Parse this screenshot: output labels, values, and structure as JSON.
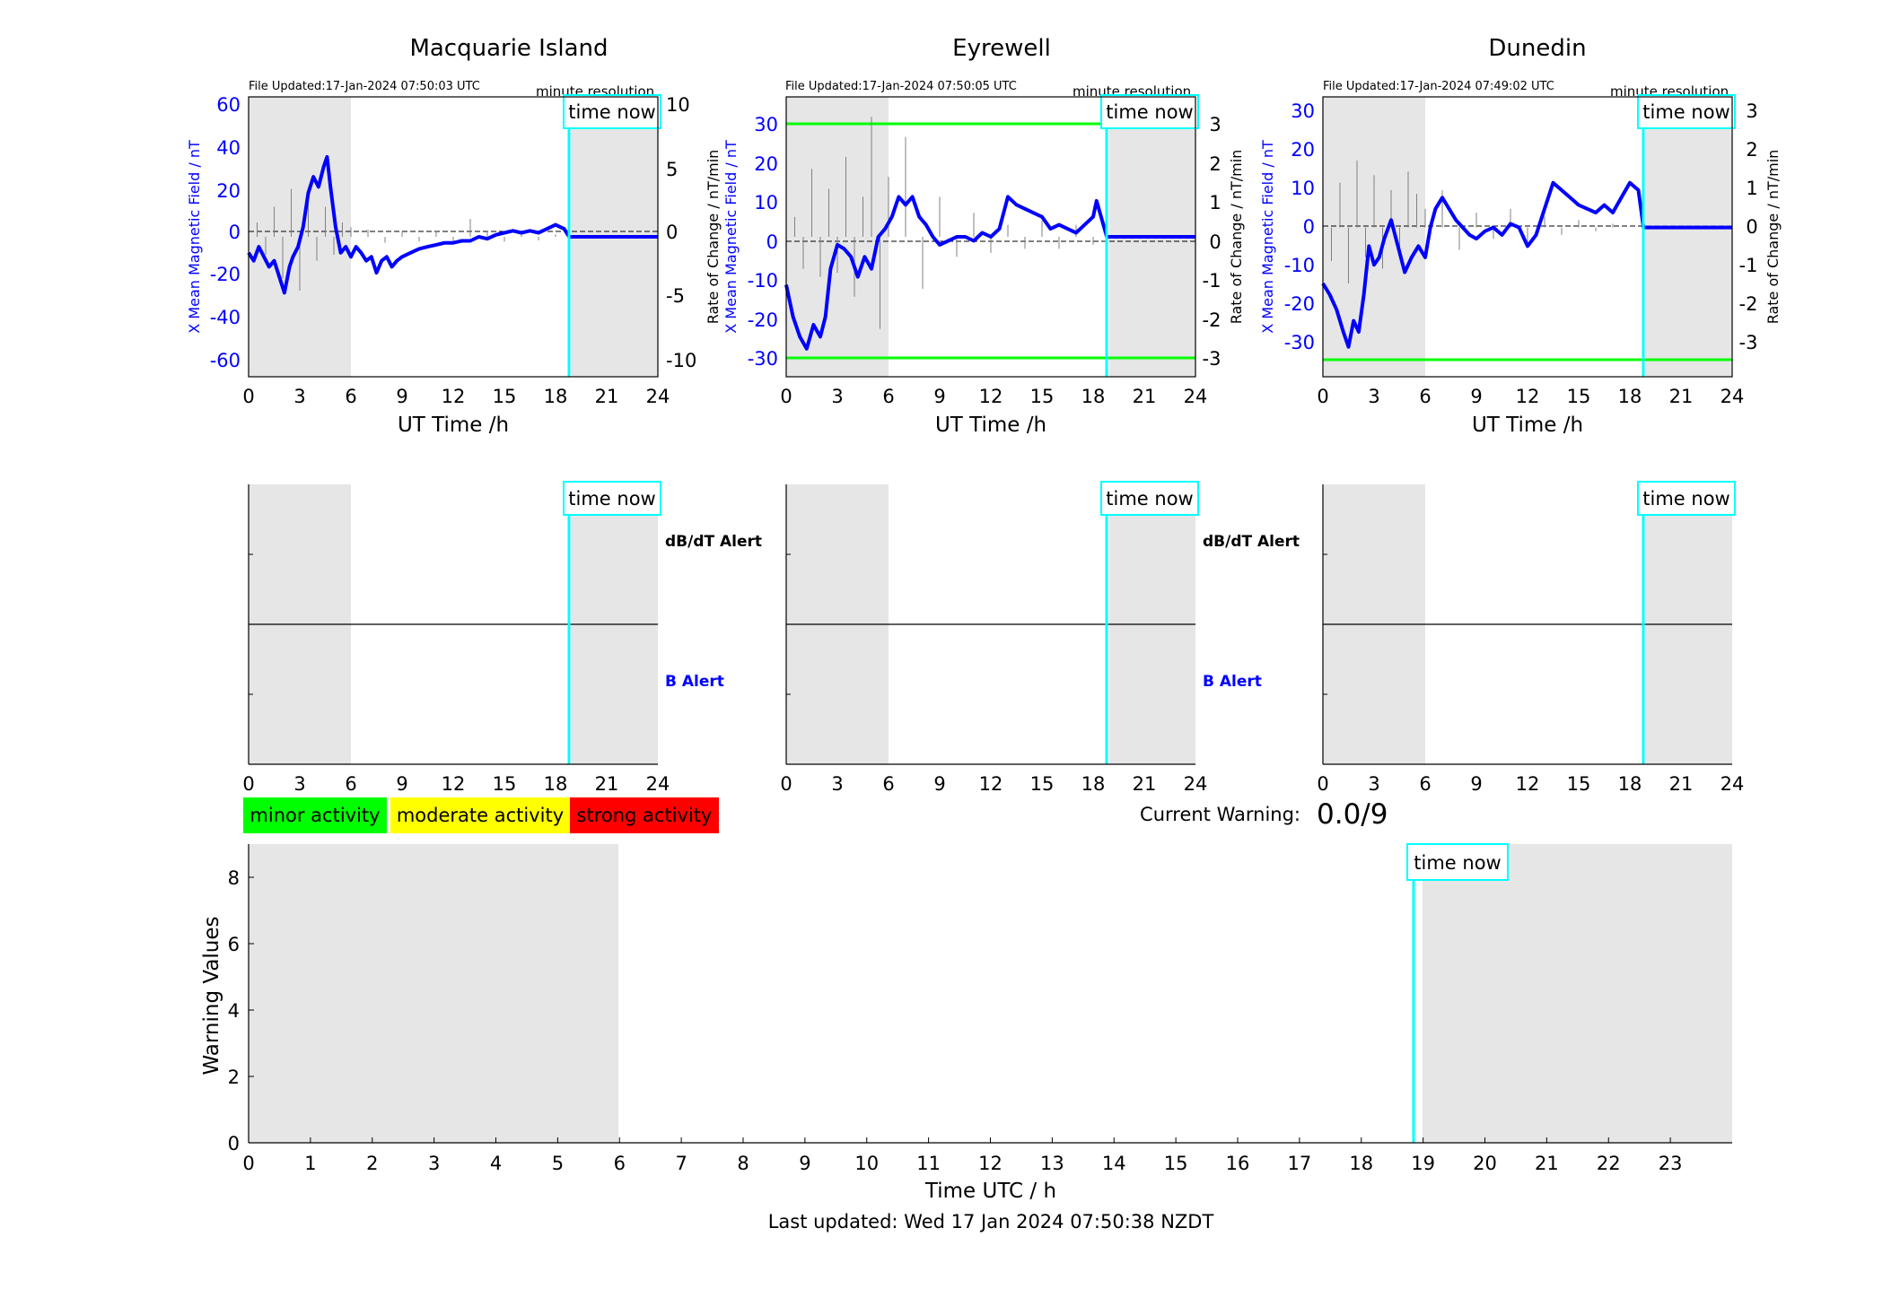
{
  "panels": [
    {
      "title": "Macquarie Island",
      "file_updated": "File Updated:17-Jan-2024 07:50:03 UTC",
      "resolution": "minute resolution",
      "left_label": "X Mean Magnetic Field / nT",
      "right_label": "",
      "left_ticks": [
        "60",
        "40",
        "20",
        "0",
        "-20",
        "-40",
        "-60"
      ],
      "right_ticks": [
        "10",
        "5",
        "0",
        "-5",
        "-10"
      ],
      "xlabel": "UT Time /h"
    },
    {
      "title": "Eyrewell",
      "file_updated": "File Updated:17-Jan-2024 07:50:05 UTC",
      "resolution": "minute resolution",
      "left_label": "X Mean Magnetic Field / nT",
      "left_label_2": "Rate of Change / nT/min",
      "right_label": "Rate of Change / nT/min",
      "left_ticks": [
        "30",
        "20",
        "10",
        "0",
        "-10",
        "-20",
        "-30"
      ],
      "right_ticks": [
        "3",
        "2",
        "1",
        "0",
        "-1",
        "-2",
        "-3"
      ],
      "xlabel": "UT Time /h"
    },
    {
      "title": "Dunedin",
      "file_updated": "File Updated:17-Jan-2024 07:49:02 UTC",
      "resolution": "minute resolution",
      "left_label": "X Mean Magnetic Field / nT",
      "right_label": "Rate of Change / nT/min",
      "left_ticks": [
        "30",
        "20",
        "10",
        "0",
        "-10",
        "-20",
        "-30"
      ],
      "right_ticks": [
        "3",
        "2",
        "1",
        "0",
        "-1",
        "-2",
        "-3"
      ],
      "xlabel": "UT Time /h"
    }
  ],
  "x_ticks_24": [
    "0",
    "3",
    "6",
    "9",
    "12",
    "15",
    "18",
    "21",
    "24"
  ],
  "time_now_label": "time now",
  "alerts": {
    "dbdt": "dB/dT Alert",
    "b": "B Alert"
  },
  "legend": {
    "minor": "minor activity",
    "moderate": "moderate activity",
    "strong": "strong activity",
    "colors": {
      "minor": "#00ff00",
      "moderate": "#ffff00",
      "strong": "#ff0000"
    }
  },
  "current_warning": {
    "label": "Current Warning:",
    "value": "0.0/9"
  },
  "warning_chart": {
    "ylabel": "Warning Values",
    "xlabel": "Time UTC / h",
    "y_ticks": [
      "0",
      "2",
      "4",
      "6",
      "8"
    ],
    "x_ticks": [
      "0",
      "1",
      "2",
      "3",
      "4",
      "5",
      "6",
      "7",
      "8",
      "9",
      "10",
      "11",
      "12",
      "13",
      "14",
      "15",
      "16",
      "17",
      "18",
      "19",
      "20",
      "21",
      "22",
      "23"
    ]
  },
  "last_updated": "Last updated: Wed 17 Jan 2024 07:50:38 NZDT",
  "colors": {
    "field": "#0000ff",
    "rate": "#808080",
    "time_now": "#00ffff",
    "threshold": "#00ff00",
    "night": "#e6e6e6"
  },
  "chart_data": [
    {
      "type": "line",
      "title": "Macquarie Island",
      "xlabel": "UT Time /h",
      "ylabel": "X Mean Magnetic Field / nT",
      "xlim": [
        0,
        24
      ],
      "ylim": [
        -70,
        70
      ],
      "y2lim": [
        -11.7,
        11.7
      ],
      "time_now": 18.8,
      "series": [
        {
          "name": "X Mean Magnetic Field / nT",
          "x": [
            0,
            0.3,
            0.6,
            0.9,
            1.2,
            1.5,
            1.8,
            2.1,
            2.4,
            2.6,
            2.9,
            3.2,
            3.5,
            3.8,
            4.1,
            4.4,
            4.6,
            4.8,
            5.1,
            5.4,
            5.7,
            6.0,
            6.3,
            6.6,
            6.9,
            7.2,
            7.5,
            7.8,
            8.1,
            8.4,
            8.7,
            9.0,
            9.5,
            10,
            10.5,
            11,
            11.5,
            12,
            12.5,
            13,
            13.5,
            14,
            14.5,
            15,
            15.5,
            16,
            16.5,
            17,
            17.5,
            18,
            18.5,
            18.8,
            19,
            20,
            21,
            22,
            23,
            24
          ],
          "y": [
            -8,
            -12,
            -5,
            -10,
            -15,
            -12,
            -20,
            -28,
            -15,
            -10,
            -5,
            5,
            22,
            30,
            25,
            35,
            40,
            25,
            5,
            -8,
            -5,
            -10,
            -5,
            -8,
            -12,
            -10,
            -18,
            -12,
            -10,
            -15,
            -12,
            -10,
            -8,
            -6,
            -5,
            -4,
            -3,
            -3,
            -2,
            -2,
            0,
            -1,
            1,
            2,
            3,
            2,
            3,
            2,
            4,
            6,
            4,
            0,
            0,
            0,
            0,
            0,
            0,
            0
          ]
        },
        {
          "name": "Rate of Change / nT/min",
          "x": [
            0.5,
            1.0,
            1.5,
            2.0,
            2.5,
            3.0,
            3.5,
            4.0,
            4.5,
            5.0,
            5.5,
            6.0,
            7.0,
            8.0,
            9.0,
            10.0,
            11.0,
            12.0,
            13.0,
            14.0,
            15.0,
            16.0,
            17.0,
            18.0
          ],
          "y": [
            1.2,
            -1.5,
            2.5,
            -3.5,
            4.0,
            -4.5,
            3.5,
            -2.0,
            2.5,
            -1.5,
            1.2,
            0.8,
            0.6,
            -0.5,
            0.4,
            -0.4,
            0.5,
            -0.6,
            1.5,
            0.5,
            -0.4,
            0.3,
            -0.3,
            0.2
          ]
        }
      ]
    },
    {
      "type": "line",
      "title": "Eyrewell",
      "xlabel": "UT Time /h",
      "ylabel": "X Mean Magnetic Field / nT",
      "xlim": [
        0,
        24
      ],
      "ylim": [
        -35,
        35
      ],
      "y2lim": [
        -3.5,
        3.5
      ],
      "thresholds": [
        30,
        -30
      ],
      "time_now": 18.8,
      "series": [
        {
          "name": "X Mean Magnetic Field / nT",
          "x": [
            0,
            0.4,
            0.8,
            1.2,
            1.6,
            2.0,
            2.3,
            2.6,
            3.0,
            3.4,
            3.8,
            4.2,
            4.6,
            5.0,
            5.4,
            5.8,
            6.2,
            6.6,
            7.0,
            7.4,
            7.8,
            8.2,
            8.6,
            9.0,
            9.5,
            10,
            10.5,
            11,
            11.5,
            12,
            12.5,
            13,
            13.5,
            14,
            14.5,
            15,
            15.5,
            16,
            16.5,
            17,
            17.5,
            18,
            18.2,
            18.8,
            19,
            20,
            21,
            22,
            23,
            24
          ],
          "y": [
            -12,
            -20,
            -25,
            -28,
            -22,
            -25,
            -20,
            -8,
            -2,
            -3,
            -5,
            -10,
            -5,
            -8,
            0,
            2,
            5,
            10,
            8,
            10,
            5,
            3,
            0,
            -2,
            -1,
            0,
            0,
            -1,
            1,
            0,
            2,
            10,
            8,
            7,
            6,
            5,
            2,
            3,
            2,
            1,
            3,
            5,
            9,
            0,
            0,
            0,
            0,
            0,
            0,
            0
          ]
        },
        {
          "name": "Rate of Change / nT/min",
          "x": [
            0.5,
            1.0,
            1.5,
            2.0,
            2.5,
            3.0,
            3.5,
            4.0,
            4.5,
            5.0,
            5.5,
            6.0,
            7.0,
            8.0,
            9.0,
            10.0,
            11.0,
            12.0,
            13.0,
            14.0,
            15.0,
            16.0,
            17.0,
            18.0
          ],
          "y": [
            0.5,
            -0.8,
            1.7,
            -1.0,
            1.2,
            -0.9,
            2.0,
            -1.5,
            1.0,
            3.0,
            -2.3,
            1.5,
            2.5,
            -1.3,
            1.0,
            -0.5,
            0.6,
            -0.4,
            0.3,
            -0.3,
            0.4,
            -0.3,
            0.3,
            -0.2
          ]
        }
      ]
    },
    {
      "type": "line",
      "title": "Dunedin",
      "xlabel": "UT Time /h",
      "ylabel": "X Mean Magnetic Field / nT",
      "xlim": [
        0,
        24
      ],
      "ylim": [
        -40,
        35
      ],
      "y2lim": [
        -4,
        3.5
      ],
      "thresholds": [
        -35
      ],
      "time_now": 18.8,
      "series": [
        {
          "name": "X Mean Magnetic Field / nT",
          "x": [
            0,
            0.4,
            0.8,
            1.2,
            1.5,
            1.8,
            2.1,
            2.4,
            2.7,
            3.0,
            3.3,
            3.6,
            4.0,
            4.4,
            4.8,
            5.2,
            5.6,
            6.0,
            6.3,
            6.6,
            7.0,
            7.4,
            7.8,
            8.2,
            8.6,
            9.0,
            9.5,
            10,
            10.5,
            11,
            11.5,
            12,
            12.5,
            13,
            13.5,
            14,
            14.5,
            15,
            15.5,
            16,
            16.5,
            17,
            17.5,
            18,
            18.5,
            18.8,
            19,
            20,
            21,
            22,
            23,
            24
          ],
          "y": [
            -15,
            -18,
            -22,
            -28,
            -32,
            -25,
            -28,
            -18,
            -5,
            -10,
            -8,
            -3,
            2,
            -5,
            -12,
            -8,
            -5,
            -8,
            0,
            5,
            8,
            5,
            2,
            0,
            -2,
            -3,
            -1,
            0,
            -2,
            1,
            0,
            -5,
            -2,
            5,
            12,
            10,
            8,
            6,
            5,
            4,
            6,
            4,
            8,
            12,
            10,
            0,
            0,
            0,
            0,
            0,
            0,
            0
          ]
        },
        {
          "name": "Rate of Change / nT/min",
          "x": [
            0.5,
            1.0,
            1.5,
            2.0,
            2.5,
            3.0,
            3.5,
            4.0,
            4.5,
            5.0,
            5.5,
            6.0,
            7.0,
            8.0,
            9.0,
            10.0,
            11.0,
            12.0,
            13.0,
            14.0,
            15.0,
            16.0,
            17.0,
            18.0
          ],
          "y": [
            -0.9,
            1.2,
            -1.5,
            1.8,
            -0.8,
            1.4,
            -1.1,
            1.0,
            -0.7,
            1.5,
            0.9,
            0.5,
            1.0,
            -0.6,
            0.4,
            -0.3,
            0.5,
            -0.4,
            0.3,
            -0.2,
            0.2,
            -0.1,
            0.1,
            0.0
          ]
        }
      ]
    },
    {
      "type": "bar",
      "title": "",
      "xlabel": "Time UTC / h",
      "ylabel": "Warning Values",
      "xlim": [
        0,
        24
      ],
      "ylim": [
        0,
        9
      ],
      "time_now": 18.8,
      "values": []
    }
  ]
}
